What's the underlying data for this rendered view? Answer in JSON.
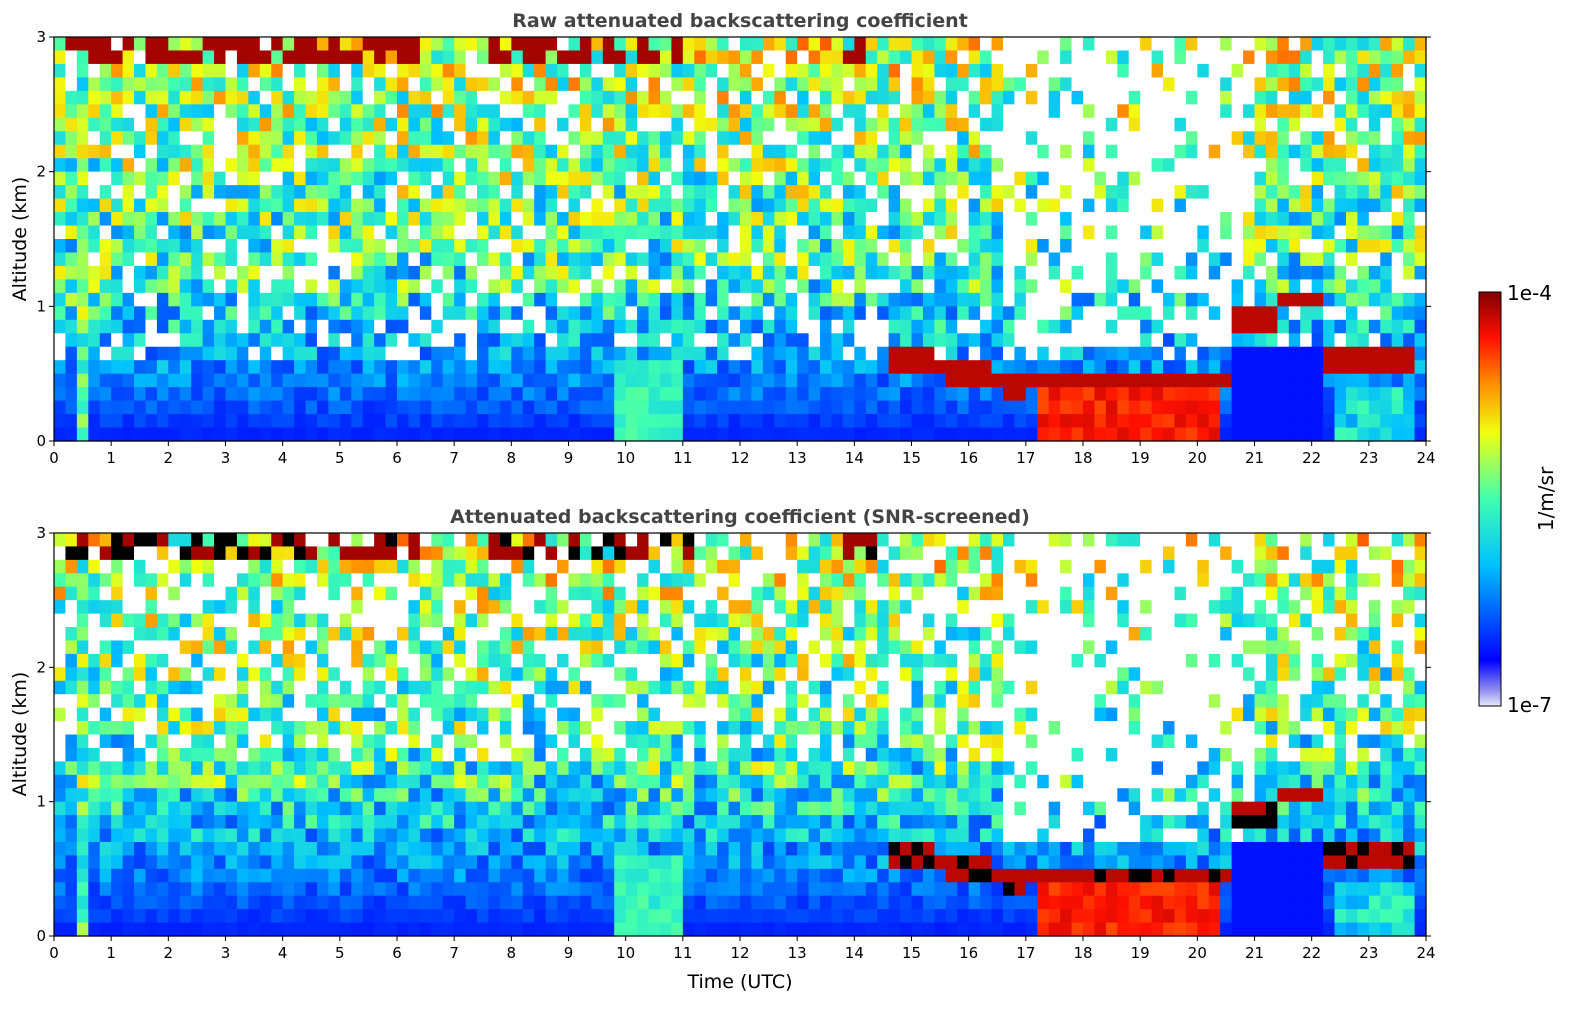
{
  "chart_data": [
    {
      "type": "heatmap",
      "title": "Raw attenuated backscattering coefficient",
      "xlabel": "",
      "ylabel": "Altitude (km)",
      "xlim": [
        0,
        24
      ],
      "ylim": [
        0,
        3
      ],
      "xticks": [
        "0",
        "1",
        "2",
        "3",
        "4",
        "5",
        "6",
        "7",
        "8",
        "9",
        "10",
        "11",
        "12",
        "13",
        "14",
        "15",
        "16",
        "17",
        "18",
        "19",
        "20",
        "21",
        "22",
        "23",
        "24"
      ],
      "yticks": [
        "0",
        "1",
        "2",
        "3"
      ],
      "grid": false
    },
    {
      "type": "heatmap",
      "title": "Attenuated backscattering coefficient (SNR-screened)",
      "xlabel": "Time (UTC)",
      "ylabel": "Altitude (km)",
      "xlim": [
        0,
        24
      ],
      "ylim": [
        0,
        3
      ],
      "xticks": [
        "0",
        "1",
        "2",
        "3",
        "4",
        "5",
        "6",
        "7",
        "8",
        "9",
        "10",
        "11",
        "12",
        "13",
        "14",
        "15",
        "16",
        "17",
        "18",
        "19",
        "20",
        "21",
        "22",
        "23",
        "24"
      ],
      "yticks": [
        "0",
        "1",
        "2",
        "3"
      ],
      "grid": false
    }
  ],
  "colorbar": {
    "max_label": "1e-4",
    "min_label": "1e-7",
    "unit_label": "1/m/sr",
    "scale": "log",
    "range": [
      1e-07,
      0.0001
    ],
    "colormap": "jet"
  },
  "features": {
    "cloud_top_band_hours": [
      0,
      14
    ],
    "aerosol_layer_km": 0.6,
    "low_cloud_hours": [
      17.2,
      20.5
    ]
  }
}
